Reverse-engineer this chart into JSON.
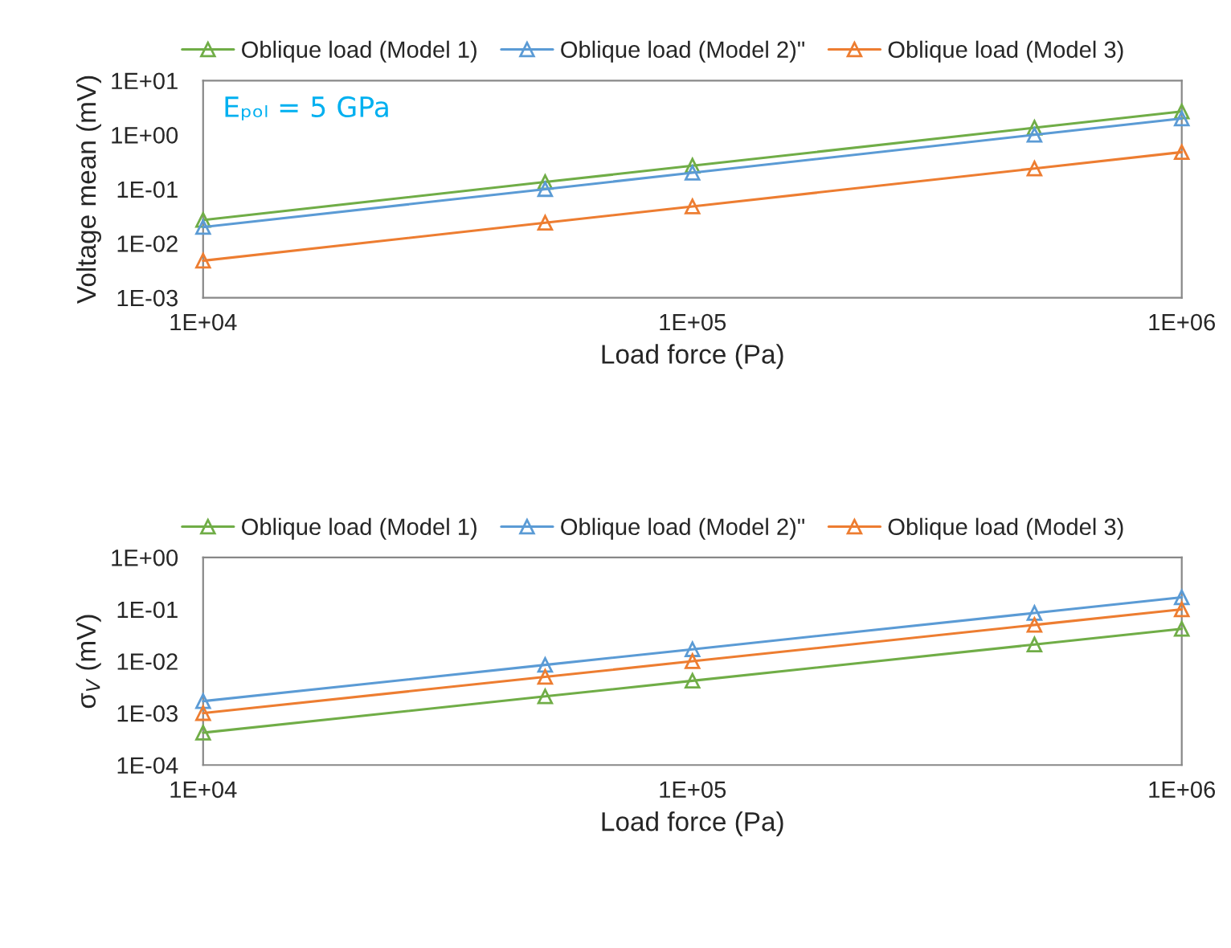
{
  "chart_data": [
    {
      "type": "line",
      "xlabel": "Load force (Pa)",
      "ylabel": "Voltage mean (mV)",
      "log": "xy",
      "grid": false,
      "legend": "top",
      "marker": "triangle",
      "line_style": "solid",
      "x": [
        10000,
        50000,
        100000,
        500000,
        1000000
      ],
      "xlim": [
        10000,
        1000000
      ],
      "xticks": [
        {
          "value": 10000,
          "label": "1E+04"
        },
        {
          "value": 100000,
          "label": "1E+05"
        },
        {
          "value": 1000000,
          "label": "1E+06"
        }
      ],
      "ylim": [
        0.001,
        10
      ],
      "yticks": [
        {
          "value": 0.001,
          "label": "1E-03"
        },
        {
          "value": 0.01,
          "label": "1E-02"
        },
        {
          "value": 0.1,
          "label": "1E-01"
        },
        {
          "value": 1,
          "label": "1E+00"
        },
        {
          "value": 10,
          "label": "1E+01"
        }
      ],
      "annotations": [
        "Eₚₒₗ = 5 GPa"
      ],
      "series": [
        {
          "name": "Oblique load (Model 1)",
          "color": "#70ad47",
          "values": [
            0.027,
            0.135,
            0.27,
            1.35,
            2.7
          ]
        },
        {
          "name": "Oblique load (Model 2)\"",
          "color": "#5b9bd5",
          "values": [
            0.02,
            0.1,
            0.2,
            1.0,
            2.0
          ]
        },
        {
          "name": "Oblique load (Model 3)",
          "color": "#ed7d31",
          "values": [
            0.0048,
            0.024,
            0.048,
            0.24,
            0.48
          ]
        }
      ]
    },
    {
      "type": "line",
      "xlabel": "Load force (Pa)",
      "ylabel": "σ$_{V}$ (mV)",
      "log": "xy",
      "grid": false,
      "legend": "top",
      "marker": "triangle",
      "line_style": "solid",
      "x": [
        10000,
        50000,
        100000,
        500000,
        1000000
      ],
      "xlim": [
        10000,
        1000000
      ],
      "xticks": [
        {
          "value": 10000,
          "label": "1E+04"
        },
        {
          "value": 100000,
          "label": "1E+05"
        },
        {
          "value": 1000000,
          "label": "1E+06"
        }
      ],
      "ylim": [
        0.0001,
        1
      ],
      "yticks": [
        {
          "value": 0.0001,
          "label": "1E-04"
        },
        {
          "value": 0.001,
          "label": "1E-03"
        },
        {
          "value": 0.01,
          "label": "1E-02"
        },
        {
          "value": 0.1,
          "label": "1E-01"
        },
        {
          "value": 1,
          "label": "1E+00"
        }
      ],
      "series": [
        {
          "name": "Oblique load (Model 1)",
          "color": "#70ad47",
          "values": [
            0.00042,
            0.0021,
            0.0042,
            0.021,
            0.042
          ]
        },
        {
          "name": "Oblique load (Model 2)\"",
          "color": "#5b9bd5",
          "values": [
            0.0017,
            0.0085,
            0.017,
            0.085,
            0.17
          ]
        },
        {
          "name": "Oblique load (Model 3)",
          "color": "#ed7d31",
          "values": [
            0.001,
            0.005,
            0.01,
            0.05,
            0.1
          ]
        }
      ]
    }
  ]
}
